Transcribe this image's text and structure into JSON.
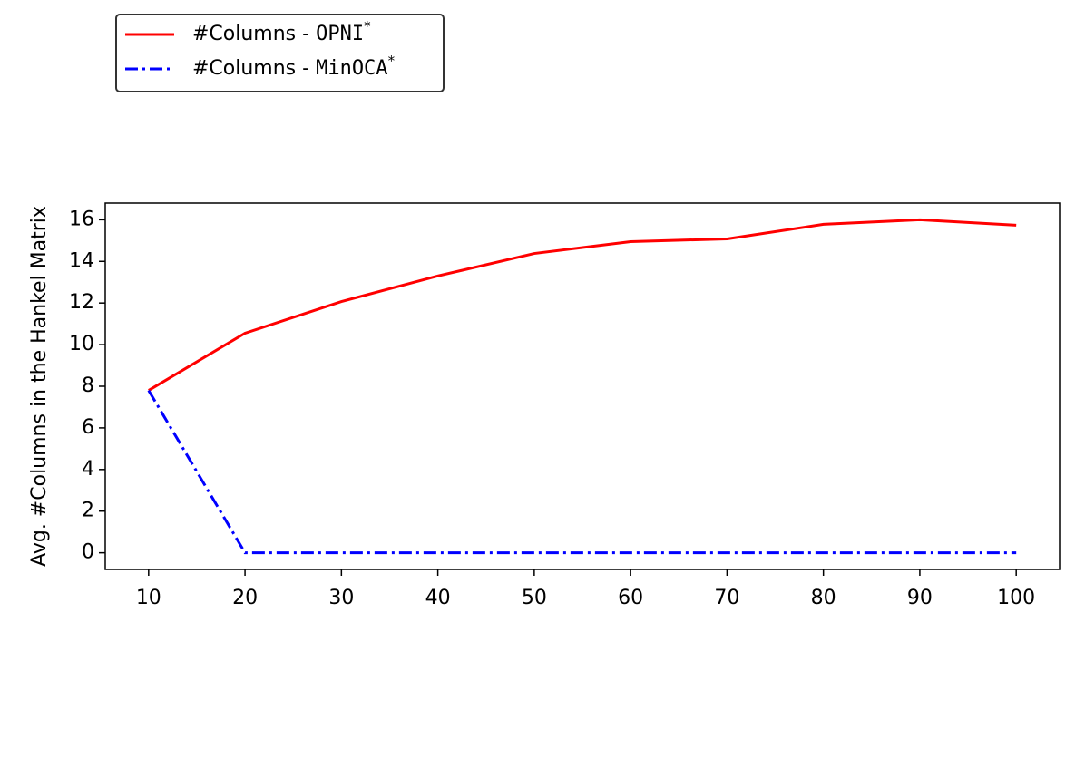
{
  "chart_data": {
    "type": "line",
    "ylabel": "Avg. #Columns in the Hankel Matrix",
    "x": [
      10,
      20,
      30,
      40,
      50,
      60,
      70,
      80,
      90,
      100
    ],
    "series": [
      {
        "name": "#Columns - OPNI*",
        "color": "#ff0000",
        "style": "solid",
        "values": [
          7.8,
          10.55,
          12.07,
          13.3,
          14.38,
          14.95,
          15.08,
          15.78,
          16.0,
          15.74
        ]
      },
      {
        "name": "#Columns - MinOCA*",
        "color": "#0000ff",
        "style": "dashdot",
        "values": [
          7.8,
          0,
          0,
          0,
          0,
          0,
          0,
          0,
          0,
          0
        ]
      }
    ],
    "xlim": [
      5.5,
      104.5
    ],
    "ylim": [
      -0.8,
      16.8
    ],
    "xticks": [
      10,
      20,
      30,
      40,
      50,
      60,
      70,
      80,
      90,
      100
    ],
    "yticks": [
      0,
      2,
      4,
      6,
      8,
      10,
      12,
      14,
      16
    ],
    "grid": false,
    "legend": "upper left outside"
  }
}
